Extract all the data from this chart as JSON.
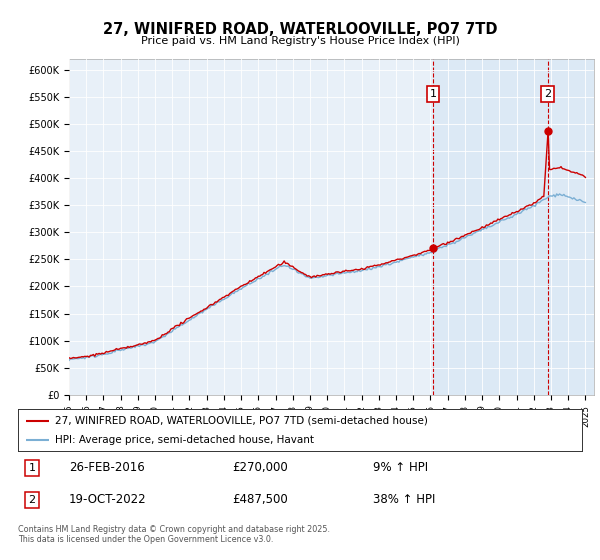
{
  "title": "27, WINIFRED ROAD, WATERLOOVILLE, PO7 7TD",
  "subtitle": "Price paid vs. HM Land Registry's House Price Index (HPI)",
  "bg_color": "#dce9f5",
  "bg_color_between": "#dce9f5",
  "fig_bg": "#ffffff",
  "line_color_property": "#cc0000",
  "line_color_hpi": "#7bafd4",
  "sale1_year": 2016.15,
  "sale1_price": 270000,
  "sale2_year": 2022.8,
  "sale2_price": 487500,
  "sale1_label": "1",
  "sale2_label": "2",
  "sale1_date": "26-FEB-2016",
  "sale1_pct": "9%",
  "sale2_date": "19-OCT-2022",
  "sale2_pct": "38%",
  "legend_property": "27, WINIFRED ROAD, WATERLOOVILLE, PO7 7TD (semi-detached house)",
  "legend_hpi": "HPI: Average price, semi-detached house, Havant",
  "footer1": "Contains HM Land Registry data © Crown copyright and database right 2025.",
  "footer2": "This data is licensed under the Open Government Licence v3.0.",
  "ylim_max": 620000,
  "xmin": 1995,
  "xmax": 2025.5
}
